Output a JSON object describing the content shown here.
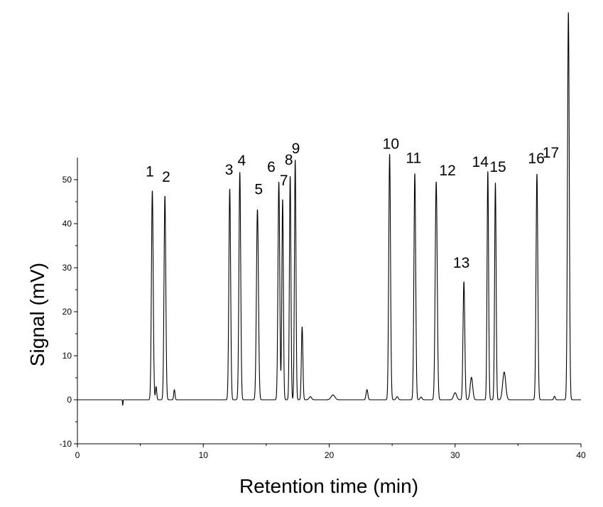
{
  "chart_data": {
    "type": "line",
    "title": "",
    "xlabel": "Retention time (min)",
    "ylabel": "Signal (mV)",
    "xlim": [
      0,
      40
    ],
    "ylim": [
      -10,
      55
    ],
    "grid": false,
    "x_ticks": [
      "0",
      "10",
      "20",
      "30",
      "40"
    ],
    "y_ticks": [
      "-10",
      "0",
      "10",
      "20",
      "30",
      "40",
      "50"
    ],
    "baseline": 0,
    "peaks": [
      {
        "label": "1",
        "x": 5.95,
        "y": 47.5,
        "w": 0.07
      },
      {
        "label": "",
        "x": 6.25,
        "y": 3.0,
        "w": 0.05
      },
      {
        "label": "2",
        "x": 6.95,
        "y": 46.3,
        "w": 0.07
      },
      {
        "label": "",
        "x": 7.7,
        "y": 2.3,
        "w": 0.05
      },
      {
        "label": "3",
        "x": 12.1,
        "y": 47.9,
        "w": 0.07
      },
      {
        "label": "4",
        "x": 12.9,
        "y": 51.7,
        "w": 0.07
      },
      {
        "label": "5",
        "x": 14.3,
        "y": 43.2,
        "w": 0.08
      },
      {
        "label": "6",
        "x": 16.0,
        "y": 49.5,
        "w": 0.07
      },
      {
        "label": "7",
        "x": 16.3,
        "y": 45.5,
        "w": 0.06
      },
      {
        "label": "8",
        "x": 16.9,
        "y": 50.8,
        "w": 0.06
      },
      {
        "label": "9",
        "x": 17.3,
        "y": 54.5,
        "w": 0.06
      },
      {
        "label": "",
        "x": 17.85,
        "y": 16.6,
        "w": 0.06
      },
      {
        "label": "",
        "x": 18.5,
        "y": 0.7,
        "w": 0.1
      },
      {
        "label": "",
        "x": 20.3,
        "y": 1.1,
        "w": 0.15
      },
      {
        "label": "",
        "x": 23.0,
        "y": 2.3,
        "w": 0.07
      },
      {
        "label": "10",
        "x": 24.8,
        "y": 55.8,
        "w": 0.07
      },
      {
        "label": "",
        "x": 25.4,
        "y": 0.7,
        "w": 0.08
      },
      {
        "label": "11",
        "x": 26.8,
        "y": 51.4,
        "w": 0.07
      },
      {
        "label": "",
        "x": 27.3,
        "y": 0.6,
        "w": 0.08
      },
      {
        "label": "12",
        "x": 28.5,
        "y": 49.5,
        "w": 0.08
      },
      {
        "label": "",
        "x": 30.0,
        "y": 1.6,
        "w": 0.12
      },
      {
        "label": "13",
        "x": 30.7,
        "y": 26.8,
        "w": 0.07
      },
      {
        "label": "",
        "x": 31.3,
        "y": 5.1,
        "w": 0.1
      },
      {
        "label": "14",
        "x": 32.6,
        "y": 51.9,
        "w": 0.06
      },
      {
        "label": "15",
        "x": 33.2,
        "y": 49.3,
        "w": 0.06
      },
      {
        "label": "",
        "x": 33.9,
        "y": 6.3,
        "w": 0.12
      },
      {
        "label": "16",
        "x": 36.5,
        "y": 51.3,
        "w": 0.07
      },
      {
        "label": "",
        "x": 37.9,
        "y": 0.8,
        "w": 0.06
      },
      {
        "label": "17",
        "x": 39.0,
        "y": 88.0,
        "w": 0.07
      }
    ],
    "label_offsets": {
      "1": [
        -0.2,
        3.2
      ],
      "2": [
        0.1,
        3.2
      ],
      "3": [
        -0.05,
        3.2
      ],
      "4": [
        0.15,
        1.5
      ],
      "5": [
        0.1,
        3.5
      ],
      "6": [
        -0.6,
        2.3
      ],
      "7": [
        0.1,
        3.2
      ],
      "8": [
        -0.1,
        2.6
      ],
      "9": [
        0.05,
        1.5
      ],
      "10": [
        0.1,
        1.2
      ],
      "11": [
        -0.1,
        2.4
      ],
      "12": [
        0.9,
        1.5
      ],
      "13": [
        -0.2,
        3.2
      ],
      "14": [
        -0.6,
        1.0
      ],
      "15": [
        0.2,
        2.5
      ],
      "16": [
        -0.05,
        2.4
      ],
      "17": [
        -1.4,
        -33.0
      ]
    }
  }
}
